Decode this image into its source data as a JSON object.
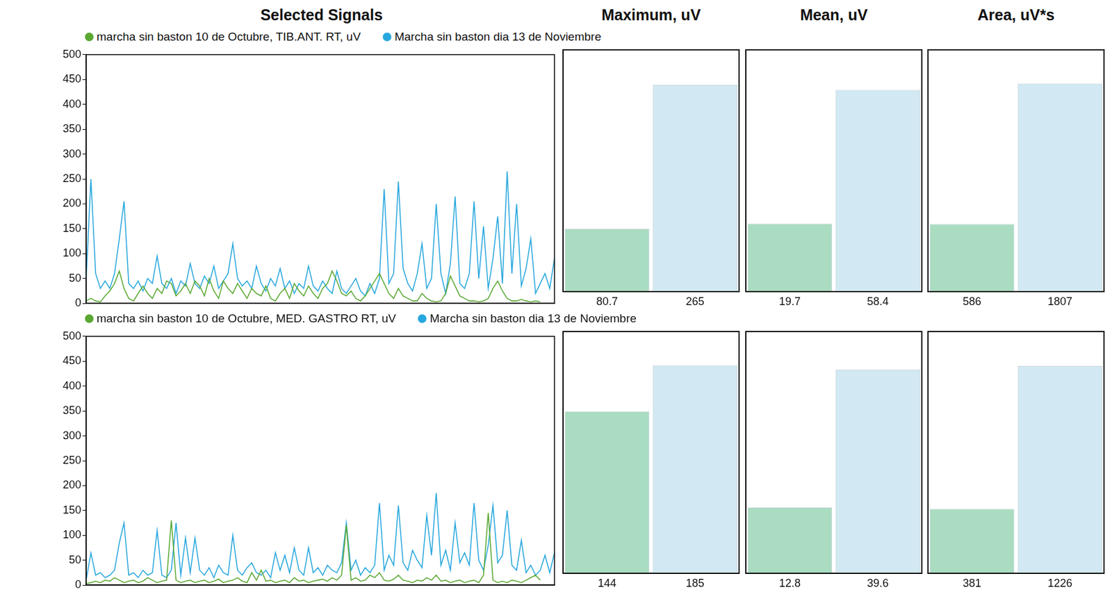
{
  "chart_data": [
    {
      "type": "line",
      "title": "Selected Signals",
      "legend": "top",
      "grid": false,
      "tick_labels": "y",
      "categories": [
        null,
        null,
        null,
        null,
        null,
        null,
        null,
        null,
        null,
        null,
        null,
        null,
        null,
        null,
        null,
        null,
        null,
        null,
        null,
        null,
        null,
        null,
        null,
        null,
        null,
        null,
        null,
        null,
        null,
        null,
        null,
        null,
        null,
        null,
        null,
        null,
        null,
        null,
        null,
        null,
        null,
        null,
        null,
        null,
        null,
        null,
        null,
        null,
        null,
        null,
        null,
        null,
        null,
        null,
        null,
        null,
        null,
        null,
        null,
        null,
        null,
        null,
        null,
        null,
        null,
        null,
        null,
        null,
        null,
        null,
        null,
        null,
        null,
        null,
        null,
        null,
        null,
        null,
        null,
        null,
        null,
        null,
        null,
        null,
        null,
        null,
        null,
        null,
        null,
        null,
        null,
        null,
        null,
        null,
        null,
        null,
        null,
        null,
        null,
        null
      ],
      "ylim": [
        0,
        500
      ],
      "yticks": [
        0,
        50,
        100,
        150,
        200,
        250,
        300,
        350,
        400,
        450,
        500
      ],
      "series": [
        {
          "name": "marcha sin baston 10 de Octubre, TIB.ANT. RT, uV",
          "color": "#5aa832",
          "values": [
            5,
            10,
            5,
            3,
            15,
            25,
            40,
            65,
            30,
            10,
            5,
            20,
            35,
            20,
            10,
            30,
            20,
            45,
            40,
            15,
            25,
            40,
            20,
            45,
            35,
            15,
            50,
            25,
            10,
            45,
            30,
            20,
            40,
            25,
            10,
            30,
            20,
            15,
            35,
            10,
            5,
            20,
            30,
            10,
            40,
            25,
            15,
            35,
            20,
            10,
            30,
            40,
            65,
            45,
            20,
            15,
            25,
            10,
            5,
            15,
            30,
            45,
            60,
            40,
            20,
            10,
            30,
            15,
            10,
            5,
            5,
            20,
            10,
            5,
            3,
            5,
            20,
            55,
            35,
            15,
            10,
            5,
            5,
            3,
            5,
            10,
            30,
            45,
            25,
            10,
            5,
            5,
            8,
            5,
            3,
            5,
            3,
            null,
            null,
            null
          ]
        },
        {
          "name": "Marcha sin baston dia 13 de Noviembre",
          "color": "#27a7de",
          "values": [
            50,
            250,
            60,
            30,
            45,
            30,
            60,
            130,
            205,
            40,
            30,
            45,
            25,
            50,
            40,
            95,
            40,
            30,
            50,
            20,
            45,
            35,
            80,
            40,
            30,
            55,
            40,
            75,
            30,
            45,
            60,
            120,
            50,
            35,
            45,
            30,
            75,
            40,
            25,
            50,
            35,
            70,
            30,
            45,
            20,
            40,
            30,
            75,
            35,
            25,
            45,
            30,
            20,
            65,
            30,
            20,
            35,
            50,
            25,
            15,
            40,
            20,
            50,
            230,
            40,
            60,
            245,
            70,
            40,
            25,
            60,
            120,
            30,
            50,
            200,
            60,
            20,
            80,
            215,
            40,
            30,
            60,
            205,
            50,
            155,
            30,
            90,
            175,
            40,
            265,
            60,
            200,
            35,
            70,
            130,
            20,
            40,
            60,
            30,
            90
          ]
        }
      ]
    },
    {
      "type": "bar",
      "title": "Maximum, uV",
      "categories": [
        null,
        null
      ],
      "values": [
        80.7,
        265
      ],
      "colors": [
        "#a9dcc1",
        "#d2e9f3"
      ],
      "ylim": [
        0,
        310
      ],
      "data_labels": true,
      "tick_labels": false,
      "grid": false
    },
    {
      "type": "bar",
      "title": "Mean, uV",
      "categories": [
        null,
        null
      ],
      "values": [
        19.7,
        58.4
      ],
      "colors": [
        "#a9dcc1",
        "#d2e9f3"
      ],
      "ylim": [
        0,
        70
      ],
      "data_labels": true,
      "tick_labels": false,
      "grid": false
    },
    {
      "type": "bar",
      "title": "Area, uV*s",
      "categories": [
        null,
        null
      ],
      "values": [
        586,
        1807
      ],
      "colors": [
        "#a9dcc1",
        "#d2e9f3"
      ],
      "ylim": [
        0,
        2100
      ],
      "data_labels": true,
      "tick_labels": false,
      "grid": false
    },
    {
      "type": "line",
      "legend": "top",
      "grid": false,
      "tick_labels": "y",
      "categories": [
        null,
        null,
        null,
        null,
        null,
        null,
        null,
        null,
        null,
        null,
        null,
        null,
        null,
        null,
        null,
        null,
        null,
        null,
        null,
        null,
        null,
        null,
        null,
        null,
        null,
        null,
        null,
        null,
        null,
        null,
        null,
        null,
        null,
        null,
        null,
        null,
        null,
        null,
        null,
        null,
        null,
        null,
        null,
        null,
        null,
        null,
        null,
        null,
        null,
        null,
        null,
        null,
        null,
        null,
        null,
        null,
        null,
        null,
        null,
        null,
        null,
        null,
        null,
        null,
        null,
        null,
        null,
        null,
        null,
        null,
        null,
        null,
        null,
        null,
        null,
        null,
        null,
        null,
        null,
        null,
        null,
        null,
        null,
        null,
        null,
        null,
        null,
        null,
        null,
        null,
        null,
        null,
        null,
        null,
        null,
        null,
        null,
        null,
        null,
        null
      ],
      "ylim": [
        0,
        500
      ],
      "yticks": [
        0,
        50,
        100,
        150,
        200,
        250,
        300,
        350,
        400,
        450,
        500
      ],
      "series": [
        {
          "name": "marcha sin baston 10 de Octubre, MED. GASTRO RT, uV",
          "color": "#5aa832",
          "values": [
            3,
            5,
            8,
            5,
            10,
            8,
            15,
            10,
            5,
            8,
            10,
            5,
            8,
            15,
            10,
            5,
            8,
            10,
            130,
            10,
            5,
            8,
            10,
            5,
            8,
            10,
            5,
            8,
            12,
            5,
            8,
            10,
            15,
            8,
            5,
            25,
            10,
            30,
            8,
            10,
            5,
            8,
            10,
            5,
            15,
            8,
            10,
            5,
            8,
            10,
            12,
            8,
            15,
            10,
            20,
            120,
            10,
            15,
            8,
            10,
            20,
            15,
            25,
            10,
            8,
            12,
            20,
            10,
            8,
            5,
            10,
            8,
            15,
            10,
            20,
            8,
            10,
            5,
            8,
            10,
            5,
            8,
            10,
            5,
            20,
            145,
            10,
            5,
            8,
            5,
            10,
            8,
            5,
            10,
            15,
            20,
            10,
            null,
            null,
            null
          ]
        },
        {
          "name": "Marcha sin baston dia 13 de Noviembre",
          "color": "#27a7de",
          "values": [
            10,
            65,
            20,
            25,
            15,
            20,
            30,
            85,
            125,
            20,
            25,
            15,
            30,
            20,
            25,
            110,
            20,
            15,
            30,
            125,
            20,
            95,
            25,
            95,
            30,
            20,
            35,
            15,
            40,
            25,
            20,
            100,
            30,
            20,
            35,
            45,
            25,
            20,
            30,
            15,
            65,
            30,
            60,
            25,
            75,
            30,
            20,
            75,
            25,
            35,
            20,
            40,
            30,
            25,
            45,
            125,
            30,
            50,
            20,
            35,
            25,
            40,
            165,
            30,
            60,
            40,
            160,
            45,
            30,
            70,
            50,
            35,
            140,
            60,
            185,
            40,
            70,
            30,
            125,
            45,
            65,
            40,
            165,
            50,
            30,
            80,
            160,
            45,
            60,
            150,
            40,
            30,
            90,
            25,
            40,
            20,
            30,
            60,
            25,
            65
          ]
        }
      ]
    },
    {
      "type": "bar",
      "categories": [
        null,
        null
      ],
      "values": [
        144,
        185
      ],
      "colors": [
        "#a9dcc1",
        "#d2e9f3"
      ],
      "ylim": [
        0,
        215
      ],
      "data_labels": true,
      "tick_labels": false,
      "grid": false
    },
    {
      "type": "bar",
      "categories": [
        null,
        null
      ],
      "values": [
        12.8,
        39.6
      ],
      "colors": [
        "#a9dcc1",
        "#d2e9f3"
      ],
      "ylim": [
        0,
        47
      ],
      "data_labels": true,
      "tick_labels": false,
      "grid": false
    },
    {
      "type": "bar",
      "categories": [
        null,
        null
      ],
      "values": [
        381,
        1226
      ],
      "colors": [
        "#a9dcc1",
        "#d2e9f3"
      ],
      "ylim": [
        0,
        1430
      ],
      "data_labels": true,
      "tick_labels": false,
      "grid": false
    }
  ]
}
